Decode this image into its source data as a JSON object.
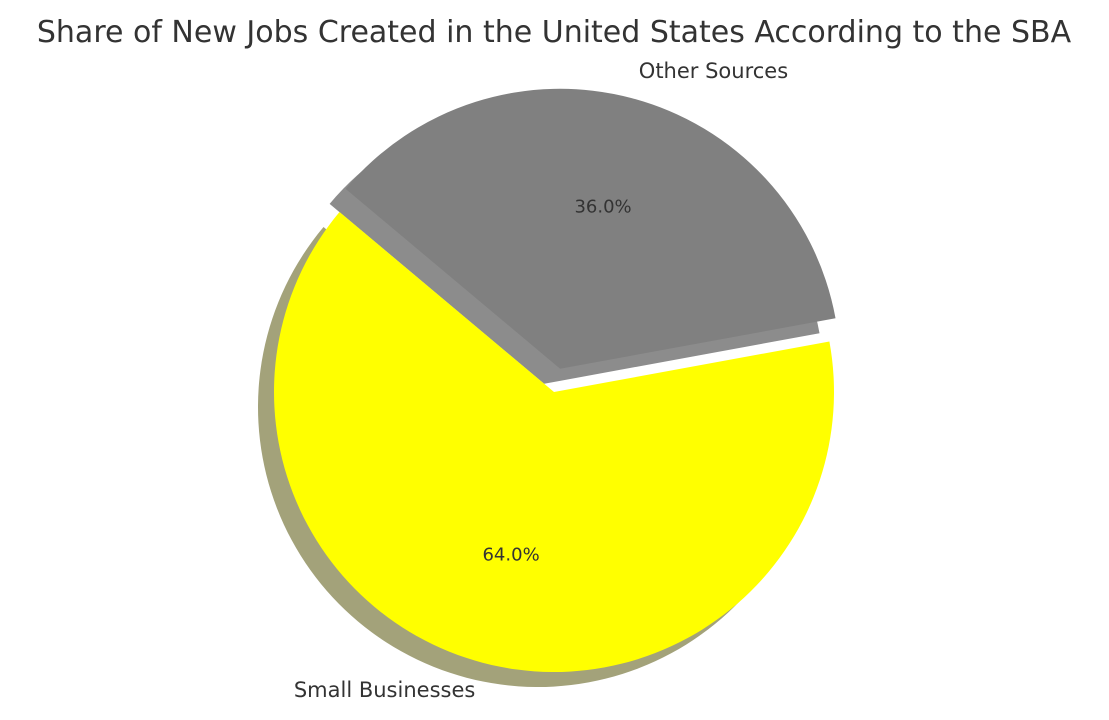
{
  "chart_data": {
    "type": "pie",
    "title": "Share of New Jobs Created in the United States According to the SBA",
    "categories": [
      "Small Businesses",
      "Other Sources"
    ],
    "values": [
      64.0,
      36.0
    ],
    "value_labels": [
      "64.0%",
      "36.0%"
    ],
    "colors": [
      "#ffff00",
      "#808080"
    ],
    "shadow_colors": [
      "#a3a27a",
      "#8c8c8c"
    ],
    "exploded": [
      "Other Sources"
    ],
    "shadow": true,
    "start_angle_deg": 140,
    "direction": "counterclockwise",
    "legend": "none"
  }
}
